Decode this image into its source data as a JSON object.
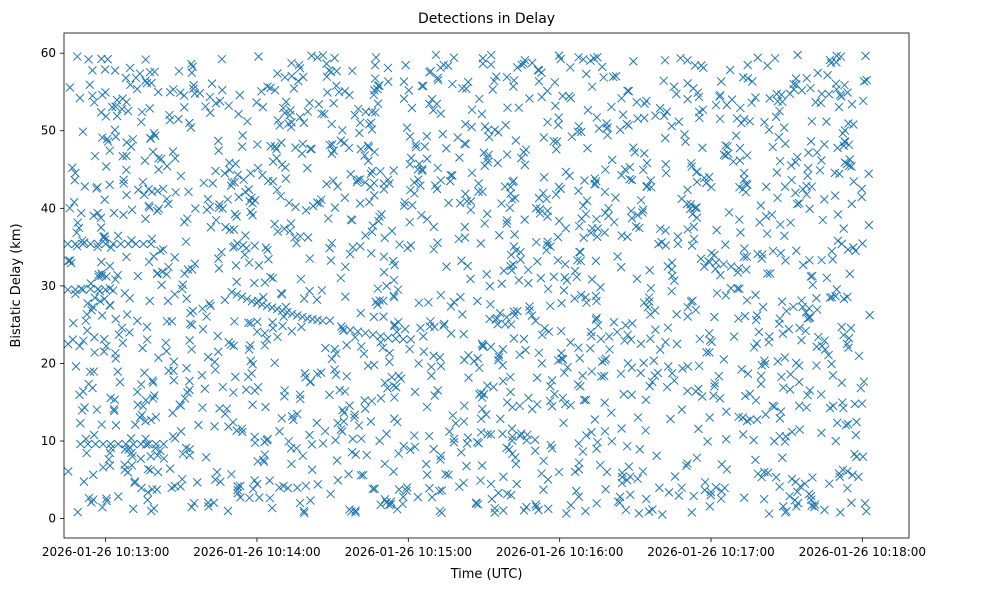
{
  "chart_data": {
    "type": "scatter",
    "title": "Detections in Delay",
    "xlabel": "Time (UTC)",
    "ylabel": "Bistatic Delay (km)",
    "x_unit": "seconds since 2026-01-26 10:13:00",
    "xlim": [
      -16.5,
      318.5
    ],
    "ylim": [
      -2.5,
      62.6
    ],
    "x_ticks": [
      {
        "value": 0,
        "label": "2026-01-26 10:13:00"
      },
      {
        "value": 60,
        "label": "2026-01-26 10:14:00"
      },
      {
        "value": 120,
        "label": "2026-01-26 10:15:00"
      },
      {
        "value": 180,
        "label": "2026-01-26 10:16:00"
      },
      {
        "value": 240,
        "label": "2026-01-26 10:17:00"
      },
      {
        "value": 300,
        "label": "2026-01-26 10:18:00"
      }
    ],
    "y_ticks": [
      {
        "value": 0,
        "label": "0"
      },
      {
        "value": 10,
        "label": "10"
      },
      {
        "value": 20,
        "label": "20"
      },
      {
        "value": 30,
        "label": "30"
      },
      {
        "value": 40,
        "label": "40"
      },
      {
        "value": 50,
        "label": "50"
      },
      {
        "value": 60,
        "label": "60"
      }
    ],
    "grid": false,
    "legend": "none",
    "marker": "x",
    "series": [
      {
        "name": "detections",
        "color": "#1f77b4",
        "background_clutter": {
          "note": "approximately 1900 detections spread near-uniformly over the area",
          "x_range": [
            -15,
            303
          ],
          "y_range": [
            0.5,
            59.8
          ],
          "count": 1900
        },
        "points": [
          [
            -15,
            35.4
          ],
          [
            -12,
            35.4
          ],
          [
            -9,
            35.4
          ],
          [
            -6,
            35.4
          ],
          [
            -3,
            35.4
          ],
          [
            0,
            35.4
          ],
          [
            3,
            35.4
          ],
          [
            6,
            35.4
          ],
          [
            9,
            35.4
          ],
          [
            12,
            35.4
          ],
          [
            15,
            35.4
          ],
          [
            18,
            35.4
          ],
          [
            -15,
            29.5
          ],
          [
            -12,
            29.5
          ],
          [
            -9,
            29.5
          ],
          [
            -6,
            29.6
          ],
          [
            -3,
            29.6
          ],
          [
            0,
            29.5
          ],
          [
            3,
            29.4
          ],
          [
            -10,
            9.6
          ],
          [
            -7,
            9.6
          ],
          [
            -4,
            9.6
          ],
          [
            -1,
            9.6
          ],
          [
            2,
            9.6
          ],
          [
            5,
            9.6
          ],
          [
            8,
            9.6
          ],
          [
            11,
            9.6
          ],
          [
            14,
            9.6
          ],
          [
            17,
            9.6
          ],
          [
            20,
            9.6
          ],
          [
            23,
            9.6
          ],
          [
            50,
            29.2
          ],
          [
            52,
            28.9
          ],
          [
            54,
            28.6
          ],
          [
            56,
            28.3
          ],
          [
            58,
            28.0
          ],
          [
            60,
            27.8
          ],
          [
            62,
            27.6
          ],
          [
            64,
            27.4
          ],
          [
            66,
            27.2
          ],
          [
            68,
            27.0
          ],
          [
            70,
            26.8
          ],
          [
            72,
            26.6
          ],
          [
            74,
            26.4
          ],
          [
            76,
            26.2
          ],
          [
            78,
            26.0
          ],
          [
            80,
            25.8
          ],
          [
            82,
            25.7
          ],
          [
            84,
            25.6
          ],
          [
            86,
            25.5
          ],
          [
            94,
            24.5
          ],
          [
            97,
            24.3
          ],
          [
            100,
            24.1
          ],
          [
            103,
            23.9
          ],
          [
            106,
            23.7
          ],
          [
            109,
            23.5
          ],
          [
            112,
            23.3
          ],
          [
            115,
            23.2
          ],
          [
            118,
            23.1
          ],
          [
            121,
            23.1
          ],
          [
            236,
            33.5
          ],
          [
            239,
            33.2
          ],
          [
            242,
            33.0
          ],
          [
            245,
            32.8
          ],
          [
            248,
            32.5
          ],
          [
            251,
            32.3
          ],
          [
            254,
            32.1
          ]
        ]
      }
    ]
  }
}
